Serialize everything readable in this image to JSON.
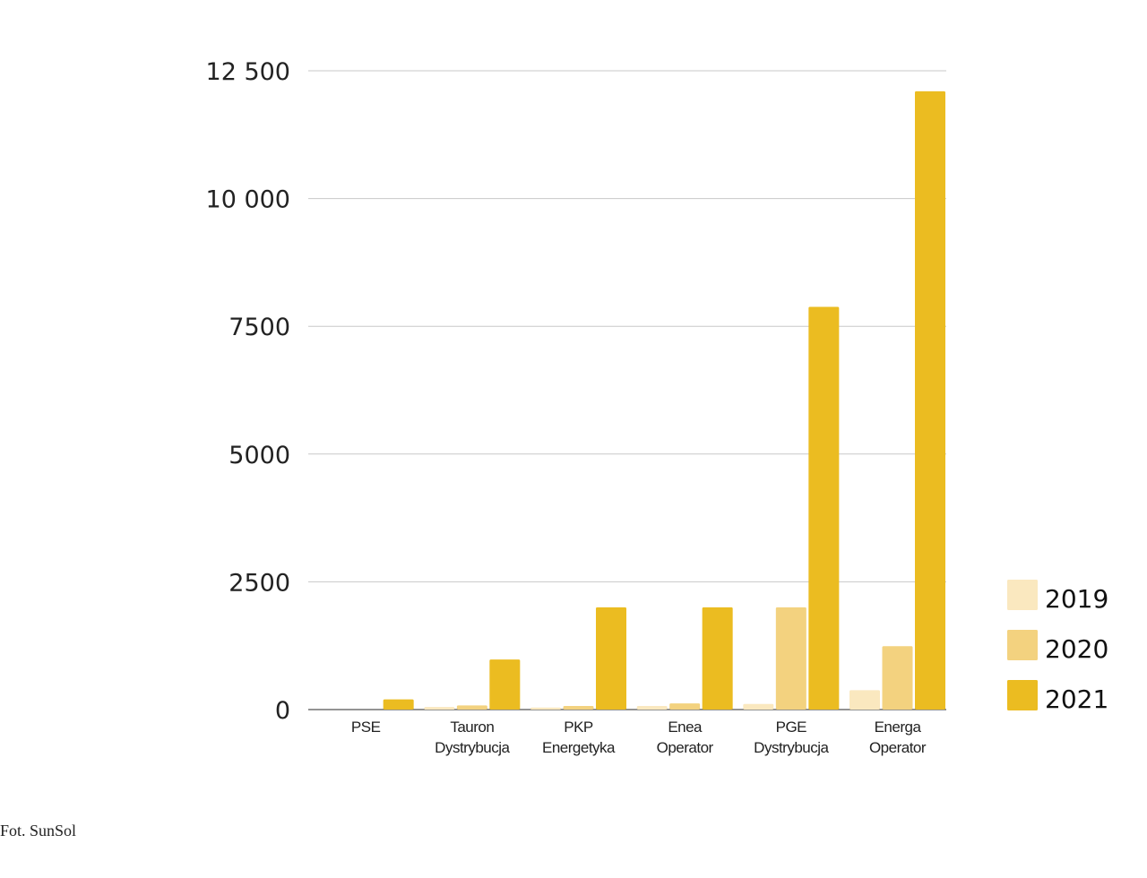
{
  "chart_data": {
    "type": "bar",
    "title": "",
    "xlabel": "",
    "ylabel": "",
    "categories": [
      [
        "PSE"
      ],
      [
        "Tauron",
        "Dystrybucja"
      ],
      [
        "PKP",
        "Energetyka"
      ],
      [
        "Enea",
        "Operator"
      ],
      [
        "PGE",
        "Dystrybucja"
      ],
      [
        "Energa",
        "Operator"
      ]
    ],
    "series": [
      {
        "name": "2019",
        "color": "#fae8bf",
        "values": [
          0,
          50,
          40,
          70,
          110,
          380
        ]
      },
      {
        "name": "2020",
        "color": "#f3d27f",
        "values": [
          0,
          80,
          70,
          120,
          2000,
          1240
        ]
      },
      {
        "name": "2021",
        "color": "#ebbc21",
        "values": [
          200,
          980,
          2000,
          2000,
          7880,
          12100
        ]
      }
    ],
    "ylim": [
      0,
      12500
    ],
    "yticks": [
      {
        "value": 0,
        "label": "0"
      },
      {
        "value": 2500,
        "label": "2500"
      },
      {
        "value": 5000,
        "label": "5000"
      },
      {
        "value": 7500,
        "label": "7500"
      },
      {
        "value": 10000,
        "label": "10 000"
      },
      {
        "value": 12500,
        "label": "12 500"
      }
    ],
    "grid": true,
    "legend_position": "bottom-right"
  },
  "credit": "Fot.  SunSol"
}
